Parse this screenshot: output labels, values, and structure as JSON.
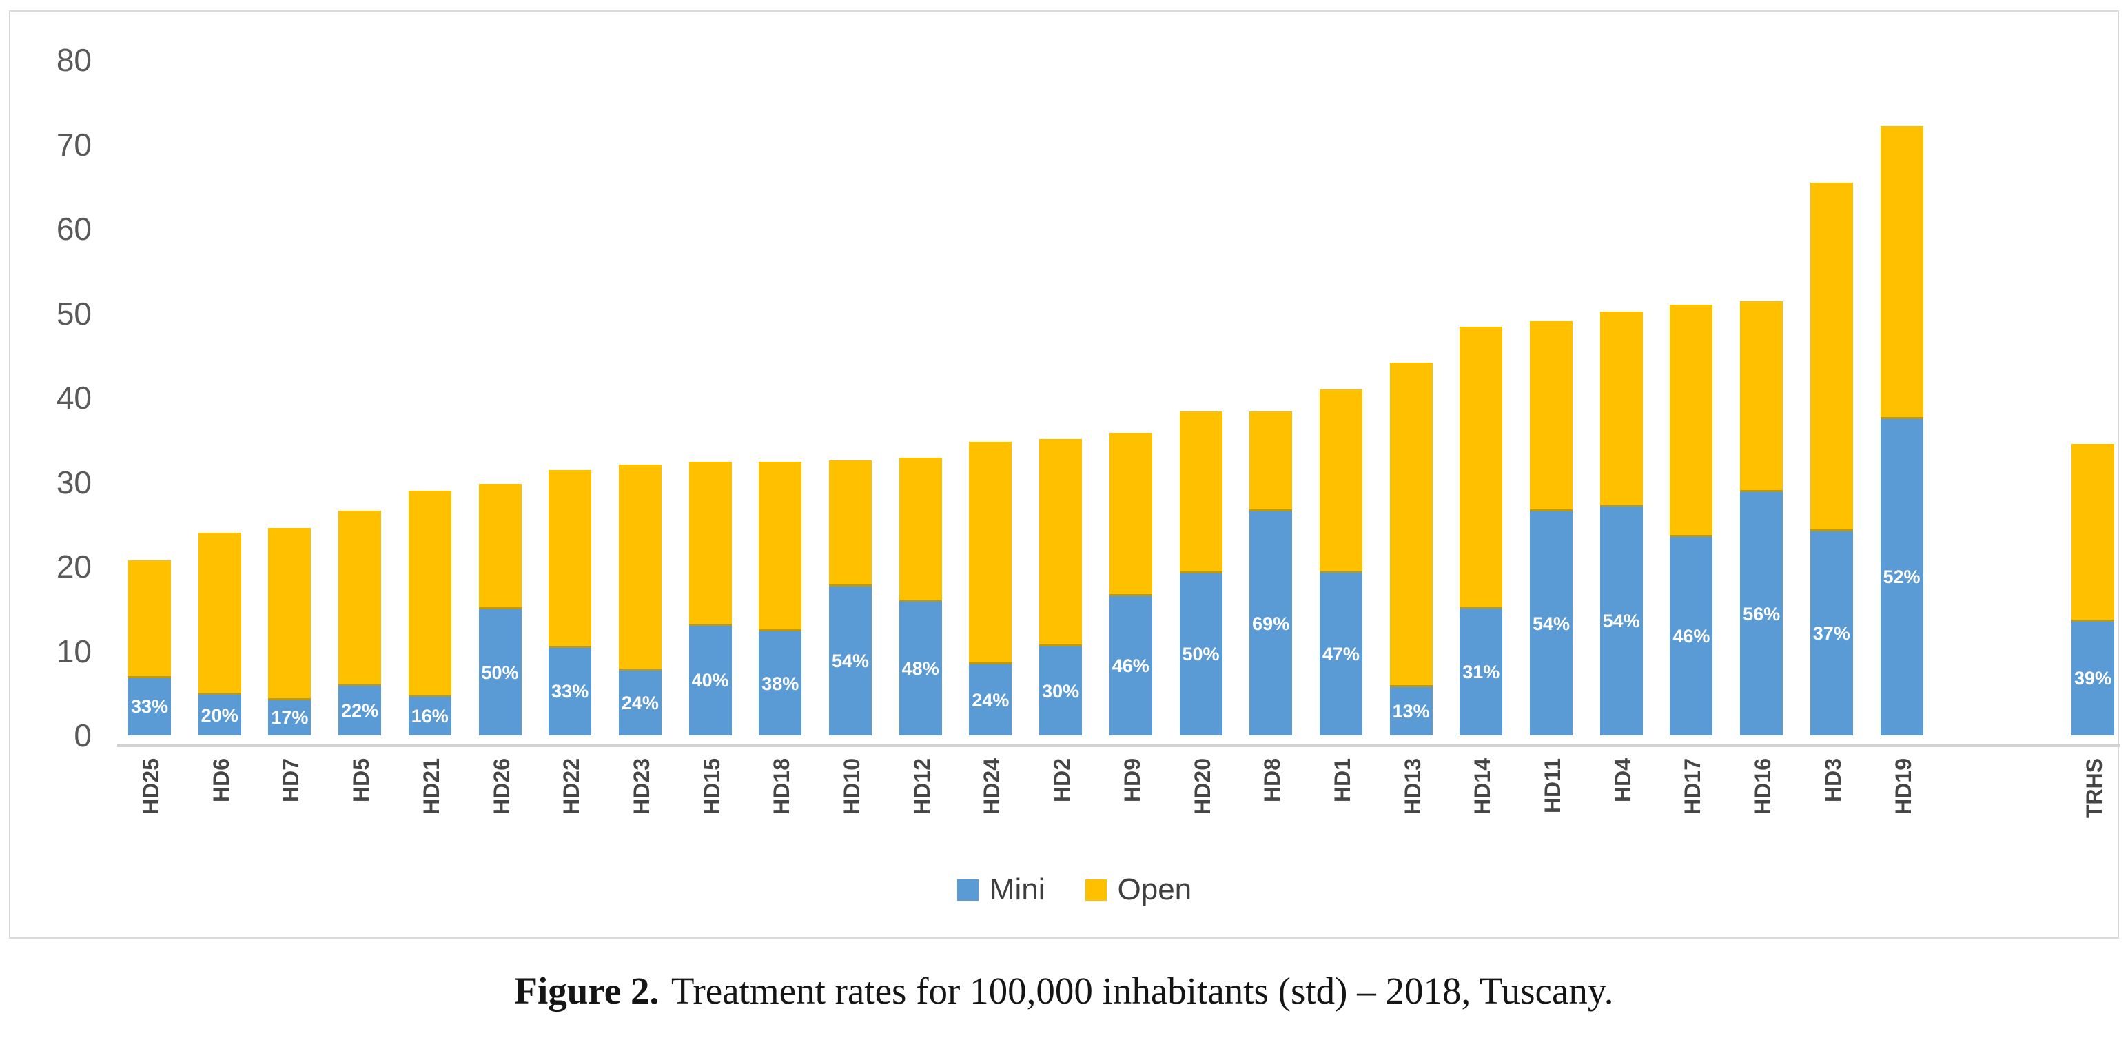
{
  "legend": {
    "mini": "Mini",
    "open": "Open"
  },
  "caption": {
    "label": "Figure 2.",
    "text": "Treatment rates for 100,000 inhabitants (std) – 2018, Tuscany."
  },
  "chart_data": {
    "type": "bar",
    "stacked": true,
    "title": "",
    "xlabel": "",
    "ylabel": "",
    "ylim": [
      0,
      80
    ],
    "yticks": [
      0,
      10,
      20,
      30,
      40,
      50,
      60,
      70,
      80
    ],
    "grid": false,
    "legend_position": "bottom-center",
    "separated_last_category": true,
    "colors": {
      "mini": "#5B9BD5",
      "open": "#FFC000",
      "axis_text": "#595959",
      "x_label_text": "#454545",
      "axis_line": "#D2D2D2",
      "pct_label_text": "#FFFFFF",
      "legend_text": "#3F3F3F",
      "frame_border": "#D9D9D9"
    },
    "categories": [
      "HD25",
      "HD6",
      "HD7",
      "HD5",
      "HD21",
      "HD26",
      "HD22",
      "HD23",
      "HD15",
      "HD18",
      "HD10",
      "HD12",
      "HD24",
      "HD2",
      "HD9",
      "HD20",
      "HD8",
      "HD1",
      "HD13",
      "HD14",
      "HD11",
      "HD4",
      "HD17",
      "HD16",
      "HD3",
      "HD19",
      "TRHS"
    ],
    "series": [
      {
        "name": "Mini",
        "values": [
          6.8,
          4.8,
          4.2,
          5.9,
          4.6,
          14.9,
          10.4,
          7.7,
          13.0,
          12.3,
          17.6,
          15.8,
          8.4,
          10.5,
          16.5,
          19.2,
          26.5,
          19.3,
          5.7,
          15.0,
          26.5,
          27.1,
          23.5,
          28.8,
          24.2,
          37.5,
          13.5
        ]
      },
      {
        "name": "Open",
        "values": [
          13.9,
          19.2,
          20.4,
          20.7,
          24.4,
          14.9,
          21.0,
          24.4,
          19.4,
          20.1,
          15.0,
          17.1,
          26.4,
          24.6,
          19.3,
          19.2,
          11.9,
          21.7,
          38.5,
          33.4,
          22.6,
          23.1,
          27.5,
          22.6,
          41.3,
          34.7,
          21.0
        ]
      }
    ],
    "totals": [
      20.7,
      24.0,
      24.6,
      26.6,
      29.0,
      29.8,
      31.4,
      32.1,
      32.4,
      32.4,
      32.6,
      32.9,
      34.8,
      35.1,
      35.8,
      38.4,
      38.4,
      41.0,
      44.2,
      48.4,
      49.1,
      50.2,
      51.0,
      51.4,
      65.5,
      72.2,
      34.5
    ],
    "mini_pct_labels": [
      "33%",
      "20%",
      "17%",
      "22%",
      "16%",
      "50%",
      "33%",
      "24%",
      "40%",
      "38%",
      "54%",
      "48%",
      "24%",
      "30%",
      "46%",
      "50%",
      "69%",
      "47%",
      "13%",
      "31%",
      "54%",
      "54%",
      "46%",
      "56%",
      "37%",
      "52%",
      "39%"
    ]
  }
}
